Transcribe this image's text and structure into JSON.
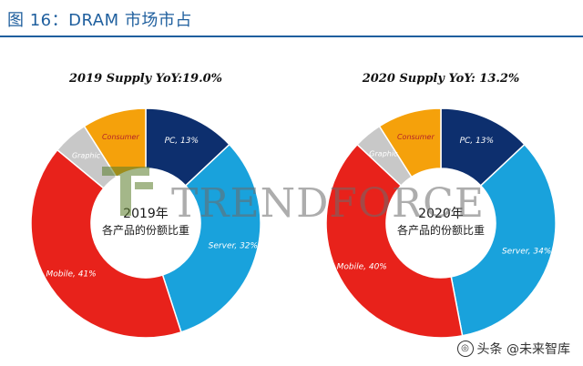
{
  "figure": {
    "title": "图 16：DRAM 市场市占"
  },
  "watermark": {
    "brand": "TRENDFORCE",
    "source": "头条 @未来智库"
  },
  "colors": {
    "PC": "#0d2f6e",
    "Server": "#19a2dc",
    "Mobile": "#e8221b",
    "Graphic": "#c8c8c8",
    "Consumer": "#f5a10b"
  },
  "chart_data": [
    {
      "type": "pie",
      "title": "2019 Supply YoY:19.0%",
      "center_label": [
        "2019年",
        "各产品的份额比重"
      ],
      "categories": [
        "PC",
        "Server",
        "Mobile",
        "Graphic",
        "Consumer"
      ],
      "values": [
        13,
        32,
        41,
        5,
        9
      ],
      "labels": [
        "PC, 13%",
        "Server, 32%",
        "Mobile, 41%",
        "Graphic",
        "Consumer"
      ]
    },
    {
      "type": "pie",
      "title": "2020 Supply YoY: 13.2%",
      "center_label": [
        "2020年",
        "各产品的份额比重"
      ],
      "categories": [
        "PC",
        "Server",
        "Mobile",
        "Graphic",
        "Consumer"
      ],
      "values": [
        13,
        34,
        40,
        4,
        9
      ],
      "labels": [
        "PC, 13%",
        "Server, 34%",
        "Mobile, 40%",
        "Graphic",
        "Consumer"
      ]
    }
  ]
}
